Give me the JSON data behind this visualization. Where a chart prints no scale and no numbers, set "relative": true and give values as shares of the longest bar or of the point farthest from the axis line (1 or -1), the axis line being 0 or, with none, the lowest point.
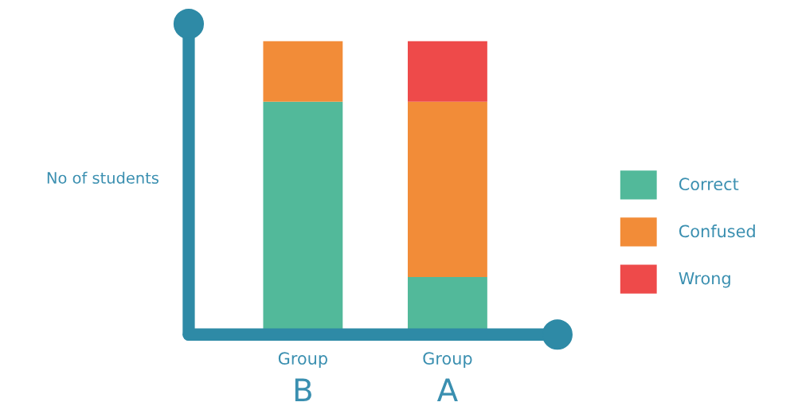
{
  "chart_data": {
    "type": "bar",
    "stacked": true,
    "relative": true,
    "ylabel": "No of students",
    "categories": [
      "Group\nB",
      "Group\nA"
    ],
    "series": [
      {
        "name": "Correct",
        "color": "#52b99a",
        "values": [
          0.79,
          0.18
        ]
      },
      {
        "name": "Confused",
        "color": "#f28c38",
        "values": [
          0.21,
          0.61
        ]
      },
      {
        "name": "Wrong",
        "color": "#ee4a4a",
        "values": [
          0,
          0.21
        ]
      }
    ],
    "legend": "right",
    "grid": false
  }
}
